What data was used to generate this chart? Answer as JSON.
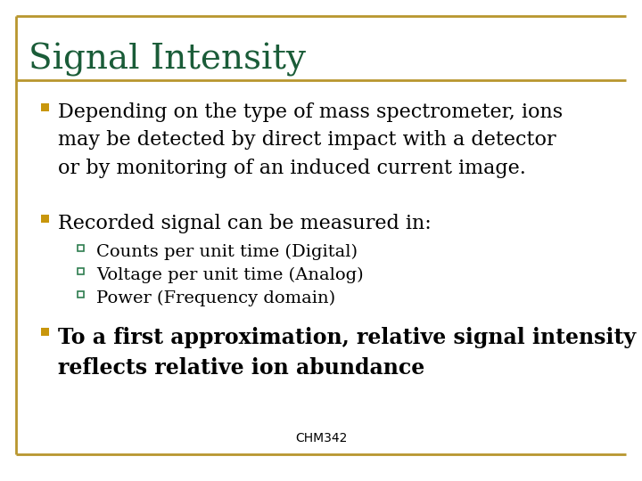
{
  "title": "Signal Intensity",
  "title_color": "#1a5c38",
  "title_fontsize": 28,
  "title_font": "serif",
  "background_color": "#ffffff",
  "border_color": "#b8962e",
  "bullet_color": "#c8960c",
  "sub_bullet_color": "#2e7d4f",
  "footer": "CHM342",
  "footer_fontsize": 10,
  "bullet1": "Depending on the type of mass spectrometer, ions\nmay be detected by direct impact with a detector\nor by monitoring of an induced current image.",
  "bullet2": "Recorded signal can be measured in:",
  "sub_bullets": [
    "Counts per unit time (Digital)",
    "Voltage per unit time (Analog)",
    "Power (Frequency domain)"
  ],
  "bullet3_line1": "To a first approximation, relative signal intensity",
  "bullet3_line2": "reflects relative ion abundance",
  "main_fontsize": 16,
  "sub_fontsize": 14,
  "main_font": "serif",
  "text_color": "#000000"
}
